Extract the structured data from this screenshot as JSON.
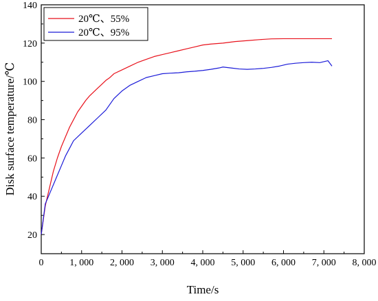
{
  "chart_data": {
    "type": "line",
    "title": "",
    "xlabel": "Time/s",
    "ylabel": "Disk surface temperature/℃",
    "xlim": [
      0,
      8000
    ],
    "ylim": [
      10,
      140
    ],
    "xticks": [
      0,
      1000,
      2000,
      3000,
      4000,
      5000,
      6000,
      7000,
      8000
    ],
    "xtick_labels": [
      "0",
      "1, 000",
      "2, 000",
      "3, 000",
      "4, 000",
      "5, 000",
      "6, 000",
      "7, 000",
      "8, 000"
    ],
    "yticks": [
      20,
      40,
      60,
      80,
      100,
      120,
      140
    ],
    "ytick_labels": [
      "20",
      "40",
      "60",
      "80",
      "100",
      "120",
      "140"
    ],
    "grid": false,
    "legend_position": "top-left",
    "series": [
      {
        "name": "20℃、55%",
        "color": "#e8101a",
        "points": [
          [
            0,
            20
          ],
          [
            100,
            35
          ],
          [
            200,
            44
          ],
          [
            300,
            53
          ],
          [
            400,
            60
          ],
          [
            500,
            66
          ],
          [
            600,
            71
          ],
          [
            700,
            76
          ],
          [
            800,
            80
          ],
          [
            900,
            84
          ],
          [
            1000,
            87
          ],
          [
            1100,
            90
          ],
          [
            1200,
            92.5
          ],
          [
            1300,
            94.5
          ],
          [
            1400,
            96.5
          ],
          [
            1500,
            98.5
          ],
          [
            1600,
            100.5
          ],
          [
            1700,
            102
          ],
          [
            1800,
            104
          ],
          [
            2000,
            106
          ],
          [
            2200,
            108
          ],
          [
            2400,
            110
          ],
          [
            2600,
            111.5
          ],
          [
            2800,
            113
          ],
          [
            3000,
            114
          ],
          [
            3200,
            115
          ],
          [
            3400,
            116
          ],
          [
            3600,
            117
          ],
          [
            3800,
            118
          ],
          [
            4000,
            119
          ],
          [
            4200,
            119.5
          ],
          [
            4500,
            120
          ],
          [
            4800,
            120.8
          ],
          [
            5100,
            121.3
          ],
          [
            5400,
            121.8
          ],
          [
            5700,
            122.2
          ],
          [
            6000,
            122.3
          ],
          [
            6500,
            122.3
          ],
          [
            7000,
            122.3
          ],
          [
            7200,
            122.3
          ]
        ]
      },
      {
        "name": "20℃、95%",
        "color": "#1a1ad8",
        "points": [
          [
            0,
            20
          ],
          [
            100,
            36
          ],
          [
            200,
            41
          ],
          [
            300,
            46
          ],
          [
            400,
            51
          ],
          [
            500,
            56
          ],
          [
            600,
            61
          ],
          [
            700,
            65
          ],
          [
            800,
            69
          ],
          [
            1000,
            73
          ],
          [
            1200,
            77
          ],
          [
            1400,
            81
          ],
          [
            1600,
            85
          ],
          [
            1800,
            91
          ],
          [
            2000,
            95
          ],
          [
            2200,
            98
          ],
          [
            2400,
            100
          ],
          [
            2600,
            102
          ],
          [
            2800,
            103
          ],
          [
            3000,
            104
          ],
          [
            3200,
            104.3
          ],
          [
            3400,
            104.5
          ],
          [
            3600,
            105
          ],
          [
            3800,
            105.3
          ],
          [
            4000,
            105.7
          ],
          [
            4200,
            106.3
          ],
          [
            4400,
            107
          ],
          [
            4500,
            107.5
          ],
          [
            4700,
            107
          ],
          [
            4900,
            106.5
          ],
          [
            5100,
            106.3
          ],
          [
            5300,
            106.5
          ],
          [
            5500,
            106.8
          ],
          [
            5700,
            107.3
          ],
          [
            5900,
            108
          ],
          [
            6100,
            109
          ],
          [
            6300,
            109.5
          ],
          [
            6500,
            109.8
          ],
          [
            6700,
            110
          ],
          [
            6900,
            109.8
          ],
          [
            7000,
            110.3
          ],
          [
            7100,
            110.8
          ],
          [
            7200,
            108
          ]
        ]
      }
    ]
  }
}
